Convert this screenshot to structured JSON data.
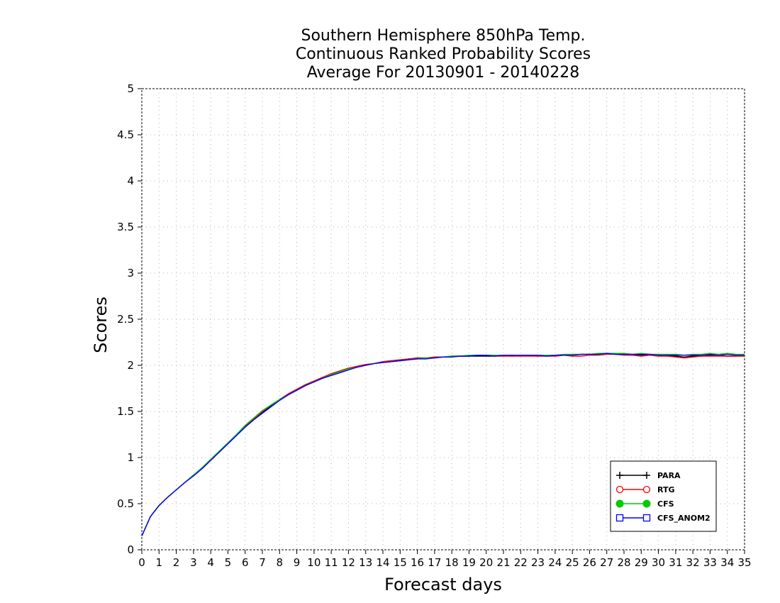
{
  "chart_data": {
    "type": "line",
    "title_lines": [
      "Southern Hemisphere 850hPa Temp.",
      "Continuous Ranked Probability Scores",
      "Average For 20130901 - 20140228"
    ],
    "xlabel": "Forecast days",
    "ylabel": "Scores",
    "xlim": [
      0,
      35
    ],
    "ylim": [
      0,
      5
    ],
    "x_ticks": [
      "0",
      "1",
      "2",
      "3",
      "4",
      "5",
      "6",
      "7",
      "8",
      "9",
      "10",
      "11",
      "12",
      "13",
      "14",
      "15",
      "16",
      "17",
      "18",
      "19",
      "20",
      "21",
      "22",
      "23",
      "24",
      "25",
      "26",
      "27",
      "28",
      "29",
      "30",
      "31",
      "32",
      "33",
      "34",
      "35"
    ],
    "y_ticks": [
      "0",
      "0.5",
      "1",
      "1.5",
      "2",
      "2.5",
      "3",
      "3.5",
      "4",
      "4.5",
      "5"
    ],
    "grid": true,
    "legend_position": "bottom-right",
    "x": [
      0,
      0.5,
      1,
      1.5,
      2,
      2.5,
      3,
      3.5,
      4,
      4.5,
      5,
      5.5,
      6,
      6.5,
      7,
      7.5,
      8,
      8.5,
      9,
      9.5,
      10,
      10.5,
      11,
      11.5,
      12,
      12.5,
      13,
      13.5,
      14,
      14.5,
      15,
      15.5,
      16,
      16.5,
      17,
      17.5,
      18,
      18.5,
      19,
      19.5,
      20,
      20.5,
      21,
      21.5,
      22,
      22.5,
      23,
      23.5,
      24,
      24.5,
      25,
      25.5,
      26,
      26.5,
      27,
      27.5,
      28,
      28.5,
      29,
      29.5,
      30,
      30.5,
      31,
      31.5,
      32,
      32.5,
      33,
      33.5,
      34,
      34.5,
      35
    ],
    "series": [
      {
        "name": "PARA",
        "color": "#000000",
        "marker": "plus",
        "values": [
          0.15,
          0.36,
          0.48,
          0.57,
          0.65,
          0.73,
          0.81,
          0.88,
          0.97,
          1.06,
          1.15,
          1.24,
          1.33,
          1.41,
          1.49,
          1.56,
          1.63,
          1.69,
          1.74,
          1.79,
          1.83,
          1.87,
          1.9,
          1.93,
          1.96,
          1.98,
          2.0,
          2.02,
          2.04,
          2.05,
          2.06,
          2.07,
          2.08,
          2.08,
          2.09,
          2.09,
          2.1,
          2.1,
          2.1,
          2.1,
          2.1,
          2.1,
          2.11,
          2.1,
          2.11,
          2.11,
          2.1,
          2.11,
          2.1,
          2.11,
          2.11,
          2.12,
          2.12,
          2.12,
          2.13,
          2.12,
          2.12,
          2.11,
          2.11,
          2.12,
          2.11,
          2.11,
          2.1,
          2.09,
          2.1,
          2.1,
          2.11,
          2.11,
          2.1,
          2.1,
          2.11
        ]
      },
      {
        "name": "RTG",
        "color": "#ff0000",
        "marker": "circle-open",
        "values": [
          0.15,
          0.36,
          0.48,
          0.57,
          0.65,
          0.73,
          0.81,
          0.89,
          0.98,
          1.07,
          1.16,
          1.25,
          1.34,
          1.42,
          1.5,
          1.57,
          1.63,
          1.69,
          1.74,
          1.79,
          1.83,
          1.87,
          1.91,
          1.94,
          1.97,
          1.99,
          2.01,
          2.02,
          2.04,
          2.05,
          2.06,
          2.07,
          2.08,
          2.08,
          2.09,
          2.09,
          2.1,
          2.1,
          2.1,
          2.11,
          2.11,
          2.1,
          2.1,
          2.1,
          2.1,
          2.1,
          2.1,
          2.1,
          2.1,
          2.11,
          2.1,
          2.1,
          2.11,
          2.11,
          2.12,
          2.12,
          2.11,
          2.11,
          2.1,
          2.11,
          2.1,
          2.1,
          2.09,
          2.08,
          2.09,
          2.1,
          2.1,
          2.1,
          2.1,
          2.1,
          2.1
        ]
      },
      {
        "name": "CFS",
        "color": "#00cc00",
        "marker": "circle-filled",
        "values": [
          0.15,
          0.36,
          0.48,
          0.57,
          0.65,
          0.73,
          0.81,
          0.89,
          0.98,
          1.07,
          1.16,
          1.25,
          1.35,
          1.43,
          1.51,
          1.57,
          1.63,
          1.68,
          1.73,
          1.78,
          1.82,
          1.86,
          1.9,
          1.93,
          1.96,
          1.98,
          2.0,
          2.02,
          2.03,
          2.04,
          2.05,
          2.06,
          2.07,
          2.08,
          2.08,
          2.09,
          2.1,
          2.1,
          2.11,
          2.11,
          2.11,
          2.11,
          2.11,
          2.11,
          2.11,
          2.11,
          2.11,
          2.11,
          2.11,
          2.12,
          2.12,
          2.12,
          2.12,
          2.13,
          2.13,
          2.13,
          2.13,
          2.12,
          2.13,
          2.12,
          2.12,
          2.12,
          2.12,
          2.11,
          2.12,
          2.12,
          2.13,
          2.12,
          2.13,
          2.12,
          2.12
        ]
      },
      {
        "name": "CFS_ANOM2",
        "color": "#0000ff",
        "marker": "square-open",
        "values": [
          0.15,
          0.36,
          0.48,
          0.57,
          0.65,
          0.73,
          0.8,
          0.88,
          0.97,
          1.06,
          1.15,
          1.24,
          1.33,
          1.41,
          1.48,
          1.55,
          1.62,
          1.68,
          1.73,
          1.78,
          1.82,
          1.86,
          1.89,
          1.92,
          1.95,
          1.98,
          2.0,
          2.02,
          2.03,
          2.04,
          2.05,
          2.06,
          2.07,
          2.07,
          2.08,
          2.09,
          2.09,
          2.1,
          2.1,
          2.11,
          2.11,
          2.1,
          2.11,
          2.11,
          2.11,
          2.11,
          2.11,
          2.1,
          2.11,
          2.11,
          2.11,
          2.12,
          2.12,
          2.12,
          2.13,
          2.12,
          2.12,
          2.12,
          2.12,
          2.12,
          2.11,
          2.11,
          2.11,
          2.11,
          2.11,
          2.11,
          2.12,
          2.11,
          2.12,
          2.11,
          2.11
        ]
      }
    ]
  }
}
